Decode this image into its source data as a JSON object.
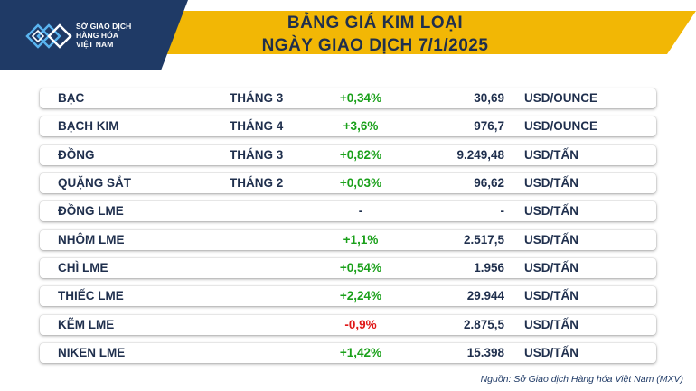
{
  "header": {
    "logo_lines": [
      "SỞ GIAO DỊCH",
      "HÀNG HÓA",
      "VIỆT NAM"
    ],
    "title_line1": "BẢNG GIÁ KIM LOẠI",
    "title_line2": "NGÀY GIAO DỊCH 7/1/2025",
    "colors": {
      "navy": "#1f3a66",
      "gold": "#f2b705",
      "accent_blue": "#2a73c9"
    }
  },
  "rows": [
    {
      "name": "BẠC",
      "month": "THÁNG 3",
      "change": "+0,34%",
      "trend": "pos",
      "price": "30,69",
      "unit": "USD/OUNCE"
    },
    {
      "name": "BẠCH KIM",
      "month": "THÁNG 4",
      "change": "+3,6%",
      "trend": "pos",
      "price": "976,7",
      "unit": "USD/OUNCE"
    },
    {
      "name": "ĐỒNG",
      "month": "THÁNG 3",
      "change": "+0,82%",
      "trend": "pos",
      "price": "9.249,48",
      "unit": "USD/TẤN"
    },
    {
      "name": "QUẶNG SẮT",
      "month": "THÁNG 2",
      "change": "+0,03%",
      "trend": "pos",
      "price": "96,62",
      "unit": "USD/TẤN"
    },
    {
      "name": "ĐỒNG LME",
      "month": "",
      "change": "-",
      "trend": "neu",
      "price": "-",
      "unit": "USD/TẤN"
    },
    {
      "name": "NHÔM LME",
      "month": "",
      "change": "+1,1%",
      "trend": "pos",
      "price": "2.517,5",
      "unit": "USD/TẤN"
    },
    {
      "name": "CHÌ LME",
      "month": "",
      "change": "+0,54%",
      "trend": "pos",
      "price": "1.956",
      "unit": "USD/TẤN"
    },
    {
      "name": "THIẾC LME",
      "month": "",
      "change": "+2,24%",
      "trend": "pos",
      "price": "29.944",
      "unit": "USD/TẤN"
    },
    {
      "name": "KẼM LME",
      "month": "",
      "change": "-0,9%",
      "trend": "neg",
      "price": "2.875,5",
      "unit": "USD/TẤN"
    },
    {
      "name": "NIKEN LME",
      "month": "",
      "change": "+1,42%",
      "trend": "pos",
      "price": "15.398",
      "unit": "USD/TẤN"
    }
  ],
  "footer": {
    "source": "Nguồn: Sở Giao dịch Hàng hóa Việt Nam (MXV)"
  }
}
